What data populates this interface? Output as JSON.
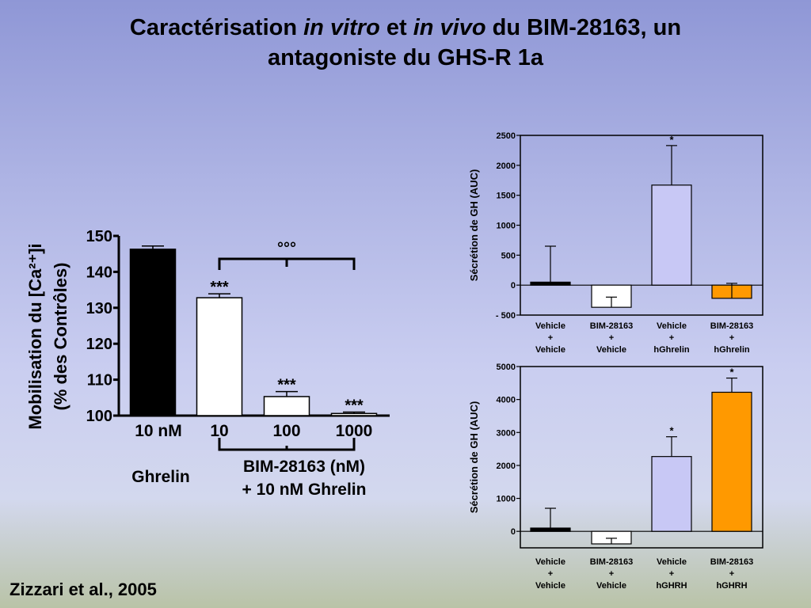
{
  "title": {
    "part1": "Caractérisation ",
    "italic1": "in vitro",
    "part2": " et ",
    "italic2": "in vivo",
    "part3": " du BIM-28163, un",
    "line2": "antagoniste du GHS-R 1a"
  },
  "citation": "Zizzari et al., 2005",
  "colors": {
    "black": "#000000",
    "white": "#ffffff",
    "lavender": "#c8c8f5",
    "orange": "#ff9900"
  },
  "chart_data": [
    {
      "type": "bar",
      "ylabel": "Mobilisation du [Ca²⁺]i\n(% des Contrôles)",
      "ylim": [
        100,
        150
      ],
      "yticks": [
        "100",
        "110",
        "120",
        "130",
        "140",
        "150"
      ],
      "categories": [
        "10 nM",
        "10",
        "100",
        "1000"
      ],
      "values": [
        146.3,
        132.8,
        105.3,
        100.6
      ],
      "errors": [
        0.9,
        1.1,
        1.4,
        0.4
      ],
      "bar_colors": [
        "black",
        "white",
        "white",
        "white"
      ],
      "significance": [
        "",
        "***",
        "***",
        "***"
      ],
      "bracket_label": "°°°",
      "group_labels": [
        "Ghrelin",
        "BIM-28163 (nM)",
        "+ 10 nM Ghrelin"
      ]
    },
    {
      "type": "bar",
      "ylabel": "Sécrétion de GH (AUC)",
      "ylim": [
        -500,
        2500
      ],
      "yticks": [
        "- 500",
        "0",
        "500",
        "1000",
        "1500",
        "2000",
        "2500"
      ],
      "categories": [
        [
          "Vehicle",
          "+",
          "Vehicle"
        ],
        [
          "BIM-28163",
          "+",
          "Vehicle"
        ],
        [
          "Vehicle",
          "+",
          "hGhrelin"
        ],
        [
          "BIM-28163",
          "+",
          "hGhrelin"
        ]
      ],
      "values": [
        50,
        -370,
        1670,
        -220
      ],
      "errors": [
        600,
        170,
        660,
        250
      ],
      "bar_colors": [
        "black",
        "white",
        "lavender",
        "orange"
      ],
      "significance": [
        "",
        "",
        "*",
        ""
      ]
    },
    {
      "type": "bar",
      "ylabel": "Sécrétion de GH (AUC)",
      "ylim": [
        -500,
        5000
      ],
      "yticks": [
        "0",
        "1000",
        "2000",
        "3000",
        "4000",
        "5000"
      ],
      "categories": [
        [
          "Vehicle",
          "+",
          "Vehicle"
        ],
        [
          "BIM-28163",
          "+",
          "Vehicle"
        ],
        [
          "Vehicle",
          "+",
          "hGHRH"
        ],
        [
          "BIM-28163",
          "+",
          "hGHRH"
        ]
      ],
      "values": [
        100,
        -380,
        2270,
        4220
      ],
      "errors": [
        600,
        170,
        600,
        430
      ],
      "bar_colors": [
        "black",
        "white",
        "lavender",
        "orange"
      ],
      "significance": [
        "",
        "",
        "*",
        "*"
      ]
    }
  ]
}
